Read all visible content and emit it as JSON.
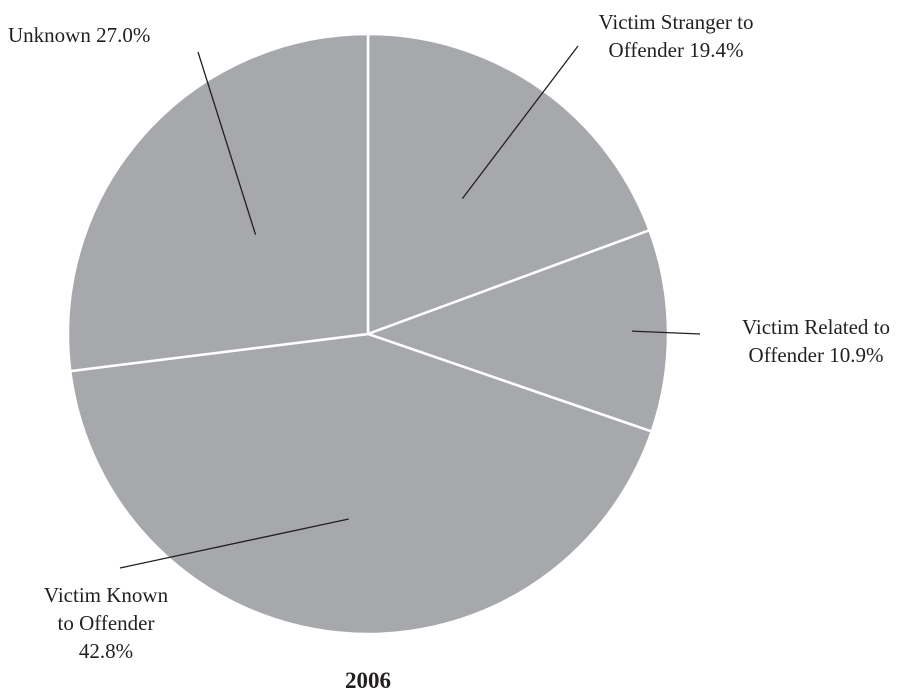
{
  "chart_data": {
    "type": "pie",
    "title": "2006",
    "slices": [
      {
        "label_lines": [
          "Victim Stranger to",
          "Offender 19.4%"
        ],
        "value": 19.4
      },
      {
        "label_lines": [
          "Victim Related to",
          "Offender 10.9%"
        ],
        "value": 10.9
      },
      {
        "label_lines": [
          "Victim Known",
          "to Offender",
          "42.8%"
        ],
        "value": 42.8
      },
      {
        "label_lines": [
          "Unknown 27.0%"
        ],
        "value": 27.0
      }
    ],
    "start": "12 o'clock",
    "direction": "clockwise",
    "slice_color": "#a7a8ab",
    "separator_color": "#ffffff",
    "text_color": "#231f20"
  }
}
